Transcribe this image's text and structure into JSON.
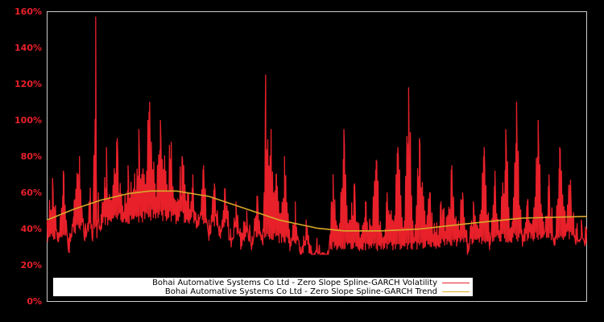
{
  "chart_data": {
    "type": "line",
    "title": "",
    "xlabel": "",
    "ylabel": "",
    "ylim": [
      0,
      160
    ],
    "y_ticks": [
      "0%",
      "20%",
      "40%",
      "60%",
      "80%",
      "100%",
      "120%",
      "140%",
      "160%"
    ],
    "y_tick_values": [
      0,
      20,
      40,
      60,
      80,
      100,
      120,
      140,
      160
    ],
    "x_ticks": [],
    "grid": false,
    "legend_position": "lower-left",
    "background": "#000000",
    "axis_color": "#cccccc",
    "tick_color": "#e8202a",
    "series": [
      {
        "name": "Bohai Automative Systems Co Ltd - Zero Slope Spline-GARCH Volatility",
        "color": "#e8202a",
        "x": [
          0,
          0.01,
          0.02,
          0.03,
          0.04,
          0.05,
          0.06,
          0.07,
          0.08,
          0.085,
          0.09,
          0.092,
          0.095,
          0.1,
          0.11,
          0.12,
          0.13,
          0.14,
          0.15,
          0.16,
          0.17,
          0.18,
          0.19,
          0.2,
          0.21,
          0.22,
          0.23,
          0.24,
          0.25,
          0.26,
          0.27,
          0.28,
          0.29,
          0.3,
          0.31,
          0.32,
          0.33,
          0.34,
          0.35,
          0.36,
          0.37,
          0.38,
          0.39,
          0.4,
          0.405,
          0.41,
          0.415,
          0.42,
          0.425,
          0.43,
          0.44,
          0.45,
          0.46,
          0.47,
          0.48,
          0.49,
          0.5,
          0.51,
          0.52,
          0.53,
          0.54,
          0.55,
          0.56,
          0.57,
          0.58,
          0.59,
          0.6,
          0.61,
          0.62,
          0.63,
          0.64,
          0.65,
          0.66,
          0.67,
          0.68,
          0.69,
          0.7,
          0.71,
          0.72,
          0.73,
          0.74,
          0.75,
          0.76,
          0.77,
          0.78,
          0.79,
          0.8,
          0.81,
          0.82,
          0.83,
          0.84,
          0.85,
          0.86,
          0.87,
          0.88,
          0.89,
          0.9,
          0.91,
          0.92,
          0.93,
          0.94,
          0.95,
          0.96,
          0.97,
          0.98,
          0.99,
          1.0
        ],
        "values": [
          45,
          68,
          38,
          72,
          35,
          55,
          80,
          40,
          62,
          42,
          157,
          45,
          60,
          48,
          85,
          55,
          90,
          52,
          75,
          62,
          95,
          70,
          110,
          65,
          100,
          72,
          88,
          55,
          80,
          60,
          70,
          48,
          75,
          45,
          65,
          42,
          62,
          40,
          55,
          38,
          50,
          36,
          58,
          40,
          125,
          75,
          95,
          60,
          70,
          48,
          80,
          35,
          55,
          30,
          45,
          28,
          35,
          27,
          27,
          70,
          40,
          95,
          45,
          65,
          35,
          55,
          42,
          78,
          38,
          60,
          45,
          85,
          40,
          118,
          35,
          90,
          50,
          60,
          38,
          55,
          45,
          75,
          42,
          60,
          32,
          55,
          40,
          85,
          38,
          72,
          45,
          95,
          40,
          110,
          38,
          55,
          45,
          100,
          42,
          70,
          35,
          85,
          50,
          67,
          40,
          45,
          40
        ]
      },
      {
        "name": "Bohai Automative Systems Co Ltd - Zero Slope Spline-GARCH Trend",
        "color": "#d9a829",
        "x": [
          0,
          0.05,
          0.1,
          0.15,
          0.19,
          0.24,
          0.3,
          0.36,
          0.43,
          0.5,
          0.55,
          0.62,
          0.69,
          0.78,
          0.88,
          1.0
        ],
        "values": [
          45,
          51,
          56,
          59.5,
          61,
          61,
          58,
          52,
          45,
          40.5,
          39,
          39,
          40,
          43,
          46,
          47
        ]
      }
    ]
  },
  "legend": {
    "items": [
      {
        "label": "Bohai Automative Systems Co Ltd - Zero Slope Spline-GARCH Volatility",
        "color": "#e8202a"
      },
      {
        "label": "Bohai Automative Systems Co Ltd - Zero Slope Spline-GARCH Trend",
        "color": "#d9a829"
      }
    ]
  }
}
